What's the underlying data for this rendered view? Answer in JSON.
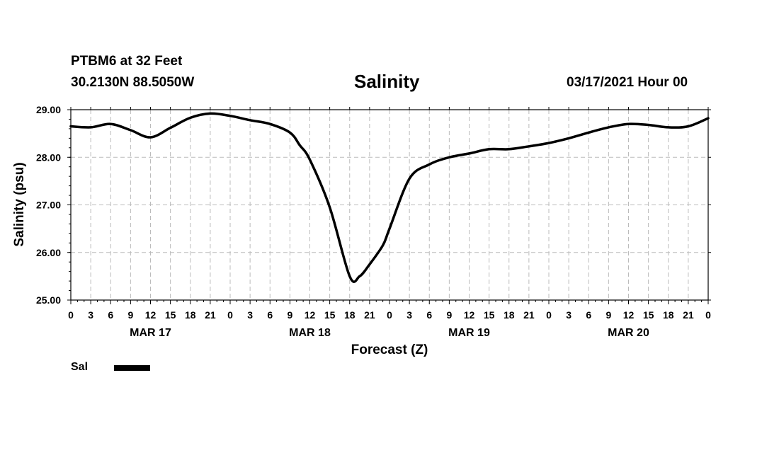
{
  "header": {
    "station": "PTBM6 at 32 Feet",
    "coords": "30.2130N 88.5050W",
    "date": "03/17/2021 Hour 00"
  },
  "chart_data": {
    "type": "line",
    "title": "Salinity",
    "xlabel": "Forecast (Z)",
    "ylabel": "Salinity (psu)",
    "ylim": [
      25.0,
      29.0
    ],
    "xlim_hours": [
      0,
      96
    ],
    "yticks": [
      "25.00",
      "26.00",
      "27.00",
      "28.00",
      "29.00"
    ],
    "x_tick_hours": [
      0,
      3,
      6,
      9,
      12,
      15,
      18,
      21,
      24,
      27,
      30,
      33,
      36,
      39,
      42,
      45,
      48,
      51,
      54,
      57,
      60,
      63,
      66,
      69,
      72,
      75,
      78,
      81,
      84,
      87,
      90,
      93,
      96
    ],
    "x_tick_labels": [
      "0",
      "3",
      "6",
      "9",
      "12",
      "15",
      "18",
      "21",
      "0",
      "3",
      "6",
      "9",
      "12",
      "15",
      "18",
      "21",
      "0",
      "3",
      "6",
      "9",
      "12",
      "15",
      "18",
      "21",
      "0",
      "3",
      "6",
      "9",
      "12",
      "15",
      "18",
      "21",
      "0"
    ],
    "day_labels": [
      {
        "label": "MAR 17",
        "hour": 12
      },
      {
        "label": "MAR 18",
        "hour": 36
      },
      {
        "label": "MAR 19",
        "hour": 60
      },
      {
        "label": "MAR 20",
        "hour": 84
      }
    ],
    "grid": true,
    "legend_position": "bottom-left",
    "series": [
      {
        "name": "Sal",
        "color": "#000000",
        "x": [
          0,
          3,
          6,
          9,
          12,
          15,
          18,
          21,
          24,
          27,
          30,
          33,
          34.5,
          36,
          39,
          42,
          43.5,
          45,
          47,
          48,
          51,
          54,
          57,
          60,
          63,
          66,
          69,
          72,
          75,
          78,
          81,
          84,
          87,
          90,
          93,
          96
        ],
        "values": [
          28.65,
          28.63,
          28.7,
          28.57,
          28.42,
          28.62,
          28.83,
          28.92,
          28.87,
          28.78,
          28.7,
          28.52,
          28.25,
          27.95,
          26.95,
          25.5,
          25.5,
          25.75,
          26.15,
          26.5,
          27.55,
          27.85,
          28.0,
          28.08,
          28.17,
          28.17,
          28.23,
          28.3,
          28.4,
          28.52,
          28.63,
          28.7,
          28.68,
          28.63,
          28.65,
          28.82
        ]
      }
    ]
  }
}
